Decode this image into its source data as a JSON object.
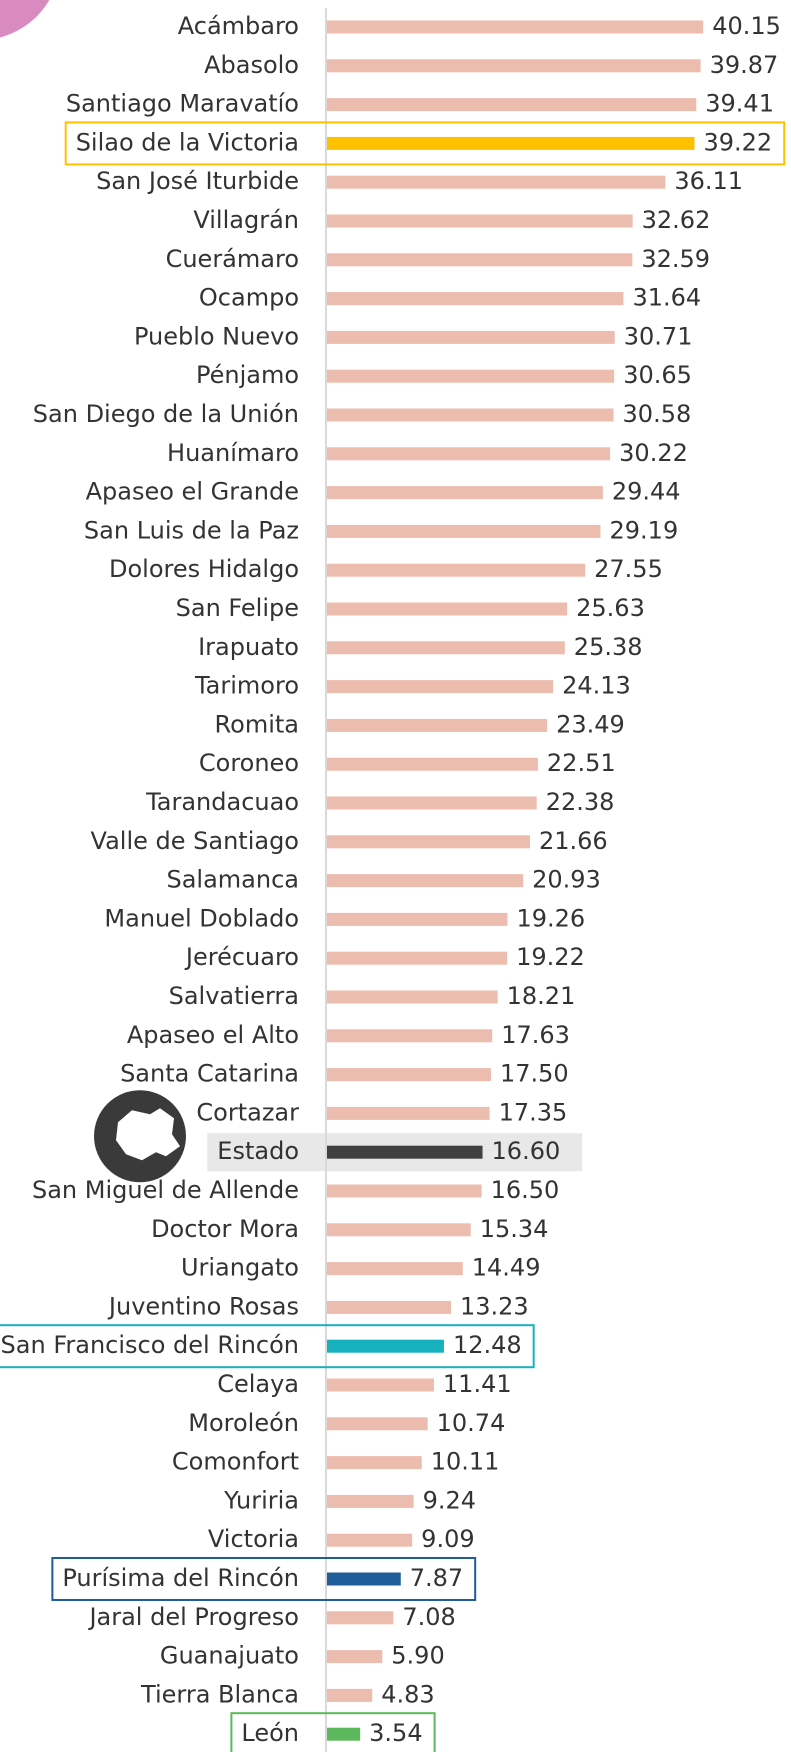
{
  "chart_data": {
    "type": "bar",
    "categories": [
      "Acámbaro",
      "Abasolo",
      "Santiago Maravatío",
      "Silao de la Victoria",
      "San José Iturbide",
      "Villagrán",
      "Cuerámaro",
      "Ocampo",
      "Pueblo Nuevo",
      "Pénjamo",
      "San Diego de la Unión",
      "Huanímaro",
      "Apaseo el Grande",
      "San Luis de la Paz",
      "Dolores Hidalgo",
      "San Felipe",
      "Irapuato",
      "Tarimoro",
      "Romita",
      "Coroneo",
      "Tarandacuao",
      "Valle de Santiago",
      "Salamanca",
      "Manuel Doblado",
      "Jerécuaro",
      "Salvatierra",
      "Apaseo el Alto",
      "Santa Catarina",
      "Cortazar",
      "Estado",
      "San Miguel de Allende",
      "Doctor Mora",
      "Uriangato",
      "Juventino Rosas",
      "San Francisco del Rincón",
      "Celaya",
      "Moroleón",
      "Comonfort",
      "Yuriria",
      "Victoria",
      "Purísima del Rincón",
      "Jaral del Progreso",
      "Guanajuato",
      "Tierra Blanca",
      "León"
    ],
    "values": [
      40.15,
      39.87,
      39.41,
      39.22,
      36.11,
      32.62,
      32.59,
      31.64,
      30.71,
      30.65,
      30.58,
      30.22,
      29.44,
      29.19,
      27.55,
      25.63,
      25.38,
      24.13,
      23.49,
      22.51,
      22.38,
      21.66,
      20.93,
      19.26,
      19.22,
      18.21,
      17.63,
      17.5,
      17.35,
      16.6,
      16.5,
      15.34,
      14.49,
      13.23,
      12.48,
      11.41,
      10.74,
      10.11,
      9.24,
      9.09,
      7.87,
      7.08,
      5.9,
      4.83,
      3.54
    ],
    "value_labels": [
      "40.15",
      "39.87",
      "39.41",
      "39.22",
      "36.11",
      "32.62",
      "32.59",
      "31.64",
      "30.71",
      "30.65",
      "30.58",
      "30.22",
      "29.44",
      "29.19",
      "27.55",
      "25.63",
      "25.38",
      "24.13",
      "23.49",
      "22.51",
      "22.38",
      "21.66",
      "20.93",
      "19.26",
      "19.22",
      "18.21",
      "17.63",
      "17.50",
      "17.35",
      "16.60",
      "16.50",
      "15.34",
      "14.49",
      "13.23",
      "12.48",
      "11.41",
      "10.74",
      "10.11",
      "9.24",
      "9.09",
      "7.87",
      "7.08",
      "5.90",
      "4.83",
      "3.54"
    ],
    "color": "#ecbcae",
    "colors": [
      "#ecbcae",
      "#ecbcae",
      "#ecbcae",
      "#ffc000",
      "#ecbcae",
      "#ecbcae",
      "#ecbcae",
      "#ecbcae",
      "#ecbcae",
      "#ecbcae",
      "#ecbcae",
      "#ecbcae",
      "#ecbcae",
      "#ecbcae",
      "#ecbcae",
      "#ecbcae",
      "#ecbcae",
      "#ecbcae",
      "#ecbcae",
      "#ecbcae",
      "#ecbcae",
      "#ecbcae",
      "#ecbcae",
      "#ecbcae",
      "#ecbcae",
      "#ecbcae",
      "#ecbcae",
      "#ecbcae",
      "#ecbcae",
      "#404040",
      "#ecbcae",
      "#ecbcae",
      "#ecbcae",
      "#ecbcae",
      "#17b0bd",
      "#ecbcae",
      "#ecbcae",
      "#ecbcae",
      "#ecbcae",
      "#ecbcae",
      "#1f5c99",
      "#ecbcae",
      "#ecbcae",
      "#ecbcae",
      "#5cb85c"
    ]
  }
}
